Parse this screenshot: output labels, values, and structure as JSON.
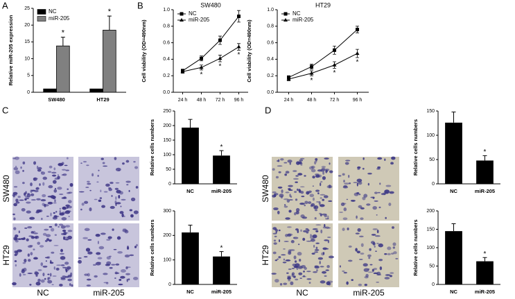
{
  "chart_data": [
    {
      "type": "bar",
      "panel": "A",
      "ylabel": "Relative miR-205 expression",
      "categories": [
        "SW480",
        "HT29"
      ],
      "series": [
        {
          "name": "NC",
          "color": "#000000",
          "values": [
            1,
            1
          ]
        },
        {
          "name": "miR-205",
          "color": "#808080",
          "values": [
            13.8,
            18.5
          ],
          "errors": [
            2.6,
            4.2
          ],
          "annotations": [
            "*",
            "*"
          ]
        }
      ],
      "ylim": [
        0,
        25
      ],
      "yticks": [
        0,
        5,
        10,
        15,
        20,
        25
      ],
      "legend": "upper left"
    },
    {
      "type": "line",
      "panel": "B",
      "title": "SW480",
      "ylabel": "Cell viability (OD=490nm)",
      "categories": [
        "24 h",
        "48 h",
        "72 h",
        "96 h"
      ],
      "series": [
        {
          "name": "NC",
          "color": "#000000",
          "marker": "square",
          "values": [
            0.26,
            0.41,
            0.63,
            0.92
          ],
          "errors": [
            0.02,
            0.03,
            0.05,
            0.07
          ]
        },
        {
          "name": "miR-205",
          "color": "#000000",
          "marker": "triangle",
          "values": [
            0.25,
            0.3,
            0.41,
            0.55
          ],
          "errors": [
            0.02,
            0.03,
            0.04,
            0.04
          ],
          "annotations": [
            null,
            "*",
            "*",
            "*"
          ]
        }
      ],
      "ylim": [
        0,
        1
      ],
      "yticks": [
        {
          "value": 0,
          "label": "0.0"
        },
        0.2,
        0.4,
        0.6,
        0.8,
        {
          "value": 1,
          "label": "1.0"
        }
      ],
      "legend": "upper left"
    },
    {
      "type": "line",
      "title": "HT29",
      "ylabel": "Cell viability (OD=490nm)",
      "categories": [
        "24 h",
        "48 h",
        "72 h",
        "96 h"
      ],
      "series": [
        {
          "name": "NC",
          "color": "#000000",
          "marker": "square",
          "values": [
            0.18,
            0.31,
            0.51,
            0.76
          ],
          "errors": [
            0.02,
            0.03,
            0.05,
            0.04
          ]
        },
        {
          "name": "miR-205",
          "color": "#000000",
          "marker": "triangle",
          "values": [
            0.16,
            0.23,
            0.33,
            0.47
          ],
          "errors": [
            0.02,
            0.03,
            0.04,
            0.05
          ],
          "annotations": [
            null,
            "*",
            "*",
            "*"
          ]
        }
      ],
      "ylim": [
        0,
        1
      ],
      "yticks": [
        {
          "value": 0,
          "label": "0.0"
        },
        0.2,
        0.4,
        0.6,
        0.8,
        {
          "value": 1,
          "label": "1.0"
        }
      ],
      "legend": "upper left"
    },
    {
      "type": "bar",
      "ylabel": "Relative cells numbers",
      "categories": [
        "NC",
        "miR-205"
      ],
      "values": [
        193,
        97
      ],
      "errors": [
        28,
        17
      ],
      "annotations": [
        null,
        "*"
      ],
      "color": "#000000",
      "ylim": [
        0,
        250
      ],
      "yticks": [
        0,
        50,
        100,
        150,
        200,
        250
      ]
    },
    {
      "type": "bar",
      "ylabel": "Relative cells numbers",
      "categories": [
        "NC",
        "miR-205"
      ],
      "values": [
        212,
        114
      ],
      "errors": [
        30,
        20
      ],
      "annotations": [
        null,
        "*"
      ],
      "color": "#000000",
      "ylim": [
        0,
        300
      ],
      "yticks": [
        0,
        100,
        200,
        300
      ]
    },
    {
      "type": "bar",
      "ylabel": "Relative cells numbers",
      "categories": [
        "NC",
        "miR-205"
      ],
      "values": [
        126,
        48
      ],
      "errors": [
        22,
        10
      ],
      "annotations": [
        null,
        "*"
      ],
      "color": "#000000",
      "ylim": [
        0,
        150
      ],
      "yticks": [
        0,
        50,
        100,
        150
      ]
    },
    {
      "type": "bar",
      "ylabel": "Relative cells numbers",
      "categories": [
        "NC",
        "miR-205"
      ],
      "values": [
        145,
        63
      ],
      "errors": [
        20,
        10
      ],
      "annotations": [
        null,
        "*"
      ],
      "color": "#000000",
      "ylim": [
        0,
        200
      ],
      "yticks": [
        0,
        50,
        100,
        150,
        200
      ]
    }
  ],
  "micrographs": [
    {
      "panel": "C",
      "rows": [
        "SW480",
        "HT29"
      ],
      "columns": [
        "NC",
        "miR-205"
      ]
    },
    {
      "panel": "D",
      "rows": [
        "SW480",
        "HT29"
      ],
      "columns": [
        "NC",
        "miR-205"
      ]
    }
  ]
}
